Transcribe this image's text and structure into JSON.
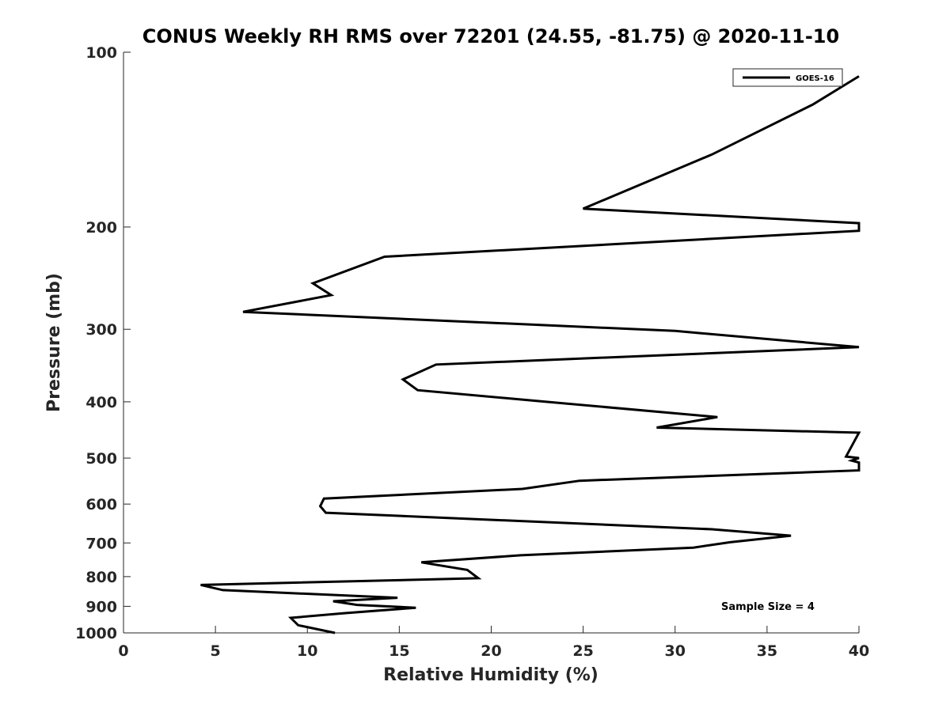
{
  "chart_data": {
    "type": "line",
    "title": "CONUS Weekly RH RMS over 72201 (24.55, -81.75) @ 2020-11-10",
    "xlabel": "Relative Humidity (%)",
    "ylabel": "Pressure (mb)",
    "xlim": [
      0,
      40
    ],
    "ylim": [
      100,
      1000
    ],
    "y_scale": "log",
    "y_reversed": true,
    "x_ticks": [
      0,
      5,
      10,
      15,
      20,
      25,
      30,
      35,
      40
    ],
    "x_tick_labels": [
      "0",
      "5",
      "10",
      "15",
      "20",
      "25",
      "30",
      "35",
      "40"
    ],
    "y_ticks": [
      100,
      200,
      300,
      400,
      500,
      600,
      700,
      800,
      900,
      1000
    ],
    "y_tick_labels": [
      "100",
      "200",
      "300",
      "400",
      "500",
      "600",
      "700",
      "800",
      "900",
      "1000"
    ],
    "grid": false,
    "legend": {
      "position": "top-right",
      "entries": [
        "GOES-16"
      ]
    },
    "annotation": "Sample Size = 4",
    "series": [
      {
        "name": "GOES-16",
        "color": "#000000",
        "points": [
          [
            40.0,
            110
          ],
          [
            37.5,
            123
          ],
          [
            32.0,
            150
          ],
          [
            25.0,
            186
          ],
          [
            40.0,
            197
          ],
          [
            40.0,
            203
          ],
          [
            14.2,
            225
          ],
          [
            10.3,
            250
          ],
          [
            11.3,
            262
          ],
          [
            6.5,
            280
          ],
          [
            30.0,
            302
          ],
          [
            40.0,
            322
          ],
          [
            17.0,
            345
          ],
          [
            15.2,
            366
          ],
          [
            16.0,
            382
          ],
          [
            23.0,
            400
          ],
          [
            32.3,
            425
          ],
          [
            29.0,
            443
          ],
          [
            40.0,
            452
          ],
          [
            39.3,
            497
          ],
          [
            40.0,
            500
          ],
          [
            39.6,
            505
          ],
          [
            40.0,
            509
          ],
          [
            40.0,
            525
          ],
          [
            24.8,
            547
          ],
          [
            21.7,
            565
          ],
          [
            10.9,
            587
          ],
          [
            10.7,
            605
          ],
          [
            11.0,
            621
          ],
          [
            32.0,
            663
          ],
          [
            36.3,
            680
          ],
          [
            33.0,
            698
          ],
          [
            31.0,
            713
          ],
          [
            21.6,
            735
          ],
          [
            16.2,
            756
          ],
          [
            18.7,
            779
          ],
          [
            19.3,
            805
          ],
          [
            4.2,
            827
          ],
          [
            5.4,
            844
          ],
          [
            14.9,
            870
          ],
          [
            11.4,
            882
          ],
          [
            12.7,
            895
          ],
          [
            15.9,
            905
          ],
          [
            12.0,
            925
          ],
          [
            9.1,
            942
          ],
          [
            9.5,
            970
          ],
          [
            11.5,
            1000
          ]
        ]
      }
    ]
  }
}
